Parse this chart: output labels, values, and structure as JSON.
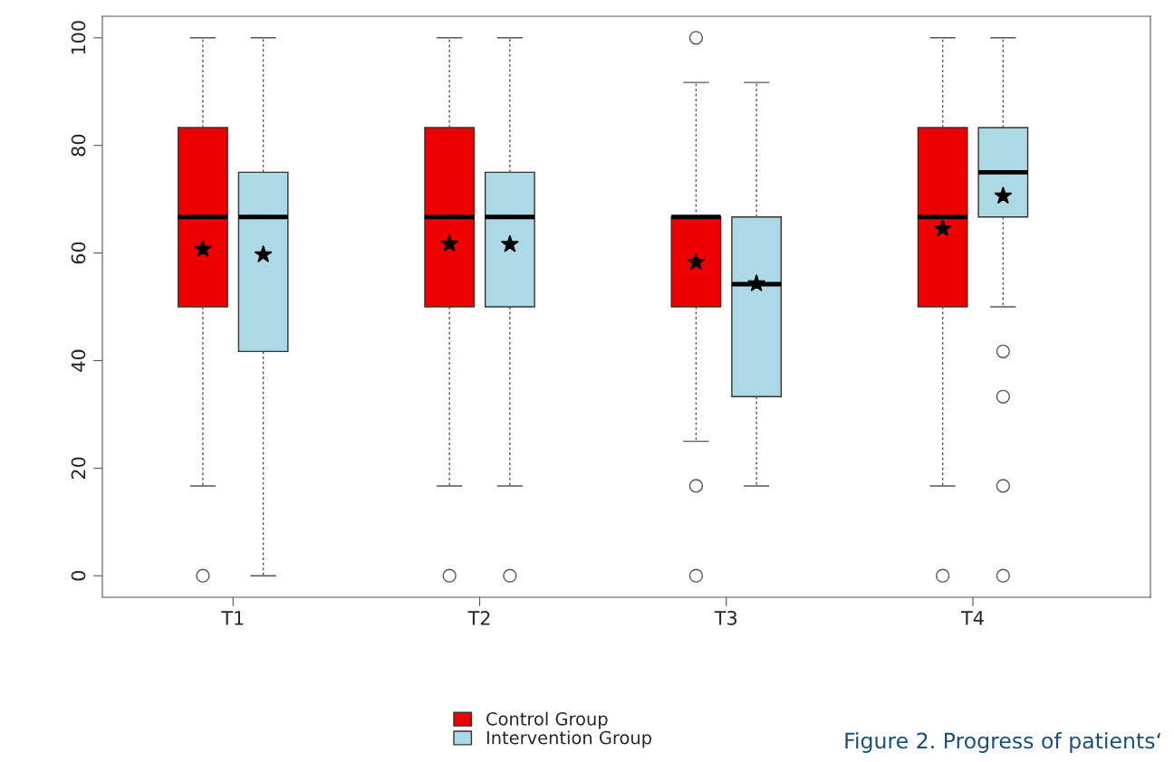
{
  "chart_data": {
    "type": "box",
    "categories": [
      "T1",
      "T2",
      "T3",
      "T4"
    ],
    "series": [
      {
        "name": "Control Group",
        "color": "#ee0000",
        "boxes": [
          {
            "low": 16.7,
            "q1": 50,
            "median": 66.7,
            "q3": 83.3,
            "high": 100,
            "mean": 60.7,
            "outliers": [
              0
            ]
          },
          {
            "low": 16.7,
            "q1": 50,
            "median": 66.7,
            "q3": 83.3,
            "high": 100,
            "mean": 61.7,
            "outliers": [
              0
            ]
          },
          {
            "low": 25,
            "q1": 50,
            "median": 66.7,
            "q3": 66.7,
            "high": 91.7,
            "mean": 58.3,
            "outliers": [
              0,
              16.7,
              100
            ]
          },
          {
            "low": 16.7,
            "q1": 50,
            "median": 66.7,
            "q3": 83.3,
            "high": 100,
            "mean": 64.5,
            "outliers": [
              0
            ]
          }
        ]
      },
      {
        "name": "Intervention Group",
        "color": "#add8e6",
        "boxes": [
          {
            "low": 0,
            "q1": 41.7,
            "median": 66.7,
            "q3": 75,
            "high": 100,
            "mean": 59.7
          },
          {
            "low": 16.7,
            "q1": 50,
            "median": 66.7,
            "q3": 75,
            "high": 100,
            "mean": 61.6,
            "outliers": [
              0
            ]
          },
          {
            "low": 16.7,
            "q1": 33.3,
            "median": 54.2,
            "q3": 66.7,
            "high": 91.7,
            "mean": 54.3
          },
          {
            "low": 50,
            "q1": 66.7,
            "median": 75,
            "q3": 83.3,
            "high": 100,
            "mean": 70.6,
            "outliers": [
              0,
              16.7,
              33.3,
              41.7
            ]
          }
        ]
      }
    ],
    "ylim": [
      -4,
      104
    ],
    "yticks": [
      0,
      20,
      40,
      60,
      80,
      100
    ],
    "grid": false,
    "legend": "bottom",
    "annotations": [
      "Figure 2. Progress of patients‘"
    ]
  }
}
